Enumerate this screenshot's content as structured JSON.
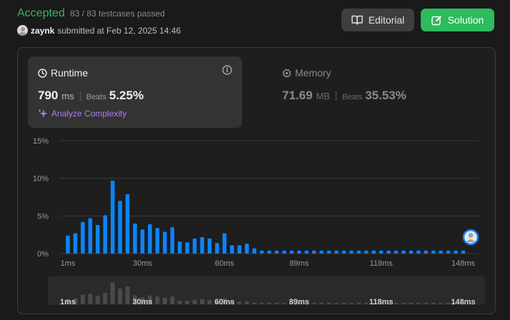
{
  "header": {
    "status": "Accepted",
    "testcases": "83 / 83 testcases passed",
    "username": "zaynk",
    "submitted_text": "submitted at Feb 12, 2025 14:46"
  },
  "buttons": {
    "editorial_label": "Editorial",
    "solution_label": "Solution"
  },
  "runtime": {
    "title": "Runtime",
    "value": "790",
    "unit": "ms",
    "beats_label": "Beats",
    "beats_value": "5.25%",
    "analyze_label": "Analyze Complexity"
  },
  "memory": {
    "title": "Memory",
    "value": "71.69",
    "unit": "MB",
    "beats_label": "Beats",
    "beats_value": "35.53%"
  },
  "colors": {
    "accepted": "#2cbb5d",
    "bar": "#0a84ff",
    "analyze": "#a97df4"
  },
  "chart_data": {
    "type": "bar",
    "y_ticks": [
      "15%",
      "10%",
      "5%",
      "0%"
    ],
    "ylim": [
      0,
      15
    ],
    "x_ticks": [
      "1ms",
      "30ms",
      "60ms",
      "89ms",
      "118ms",
      "148ms"
    ],
    "values": [
      2.4,
      2.7,
      4.2,
      4.7,
      3.8,
      5.1,
      9.7,
      7.0,
      7.9,
      4.0,
      3.2,
      3.9,
      3.4,
      2.9,
      3.5,
      1.6,
      1.5,
      2.0,
      2.2,
      2.0,
      1.4,
      2.7,
      1.1,
      1.1,
      1.3,
      0.7,
      0.4,
      0.4,
      0.4,
      0.4,
      0.4,
      0.4,
      0.4,
      0.4,
      0.4,
      0.4,
      0.4,
      0.4,
      0.4,
      0.4,
      0.4,
      0.4,
      0.4,
      0.4,
      0.4,
      0.4,
      0.4,
      0.4,
      0.4,
      0.4,
      0.4,
      0.4,
      0.4,
      0.4,
      0.4
    ],
    "your_submission_index": 54,
    "bar_color": "#0a84ff"
  }
}
